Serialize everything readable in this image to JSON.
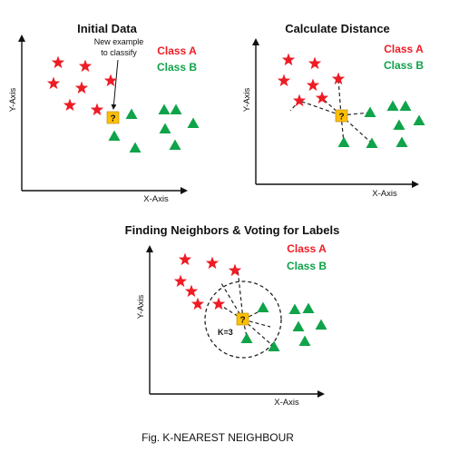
{
  "colors": {
    "class_a": "#ee1c24",
    "class_b": "#0fa34a",
    "unknown_fill": "#ffc000",
    "axis": "#111111",
    "dashed": "#222222"
  },
  "icons": {
    "class_a_marker": "star-icon",
    "class_b_marker": "triangle-icon",
    "new_example_marker": "question-square-icon"
  },
  "panels": [
    {
      "id": "initial-data",
      "title": "Initial Data",
      "legend": {
        "class_a": "Class A",
        "class_b": "Class B"
      },
      "xlabel": "X-Axis",
      "ylabel": "Y-Axis",
      "query_symbol": "?",
      "annotation": [
        "New example",
        "to classify"
      ]
    },
    {
      "id": "calculate-distance",
      "title": "Calculate Distance",
      "legend": {
        "class_a": "Class A",
        "class_b": "Class B"
      },
      "xlabel": "X-Axis",
      "ylabel": "Y-Axis",
      "query_symbol": "?"
    },
    {
      "id": "finding-neighbors",
      "title": "Finding Neighbors & Voting for Labels",
      "legend": {
        "class_a": "Class A",
        "class_b": "Class B"
      },
      "xlabel": "X-Axis",
      "ylabel": "Y-Axis",
      "query_symbol": "?",
      "k_label": "K=3"
    }
  ],
  "caption": "Fig. K-NEAREST NEIGHBOUR"
}
